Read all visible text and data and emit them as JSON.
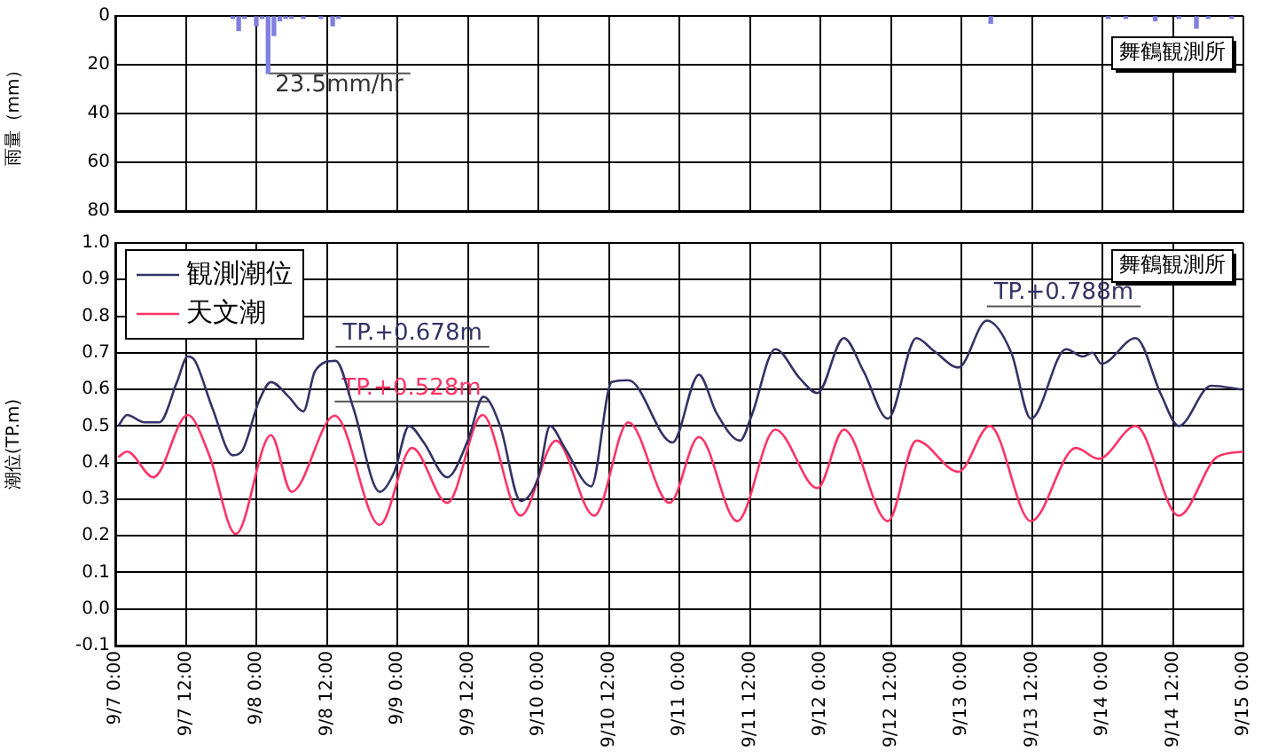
{
  "chart_data": [
    {
      "type": "bar",
      "ylabel": "雨量（mm）",
      "x": [
        "--09-07T20:00",
        "--09-07T21:00",
        "--09-07T22:00",
        "--09-08T00:00",
        "--09-08T01:00",
        "--09-08T02:00",
        "--09-08T03:00",
        "--09-08T04:00",
        "--09-08T05:00",
        "--09-08T06:00",
        "--09-08T08:00",
        "--09-08T11:00",
        "--09-08T13:00",
        "--09-08T14:00",
        "--09-13T05:00",
        "--09-14T01:00",
        "--09-14T04:00",
        "--09-14T09:00",
        "--09-14T13:00",
        "--09-14T16:00",
        "--09-14T18:00",
        "--09-14T22:00"
      ],
      "values": [
        1,
        6,
        1,
        4,
        1,
        23.5,
        8,
        2,
        1,
        1,
        1,
        1,
        4,
        1,
        3,
        1,
        1,
        2,
        1,
        5,
        1,
        1
      ],
      "color": "#7f7fe0",
      "xlim": [
        "--09-07T00:00",
        "--09-15T00:00"
      ],
      "xticks": [
        {
          "value": "--09-07T00:00",
          "label": null
        },
        {
          "value": "--09-07T12:00",
          "label": null
        },
        {
          "value": "--09-08T00:00",
          "label": null
        },
        {
          "value": "--09-08T12:00",
          "label": null
        },
        {
          "value": "--09-09T00:00",
          "label": null
        },
        {
          "value": "--09-09T12:00",
          "label": null
        },
        {
          "value": "--09-10T00:00",
          "label": null
        },
        {
          "value": "--09-10T12:00",
          "label": null
        },
        {
          "value": "--09-11T00:00",
          "label": null
        },
        {
          "value": "--09-11T12:00",
          "label": null
        },
        {
          "value": "--09-12T00:00",
          "label": null
        },
        {
          "value": "--09-12T12:00",
          "label": null
        },
        {
          "value": "--09-13T00:00",
          "label": null
        },
        {
          "value": "--09-13T12:00",
          "label": null
        },
        {
          "value": "--09-14T00:00",
          "label": null
        },
        {
          "value": "--09-14T12:00",
          "label": null
        },
        {
          "value": "--09-15T00:00",
          "label": null
        }
      ],
      "ylim": [
        80,
        0
      ],
      "yticks": [
        0,
        20,
        40,
        60,
        80
      ],
      "tick_labels": "y",
      "grid": true,
      "annotations": [
        {
          "text": "23.5mm/hr",
          "x": "--09-08T02:00",
          "y": 23.5
        },
        "舞鶴観測所"
      ]
    },
    {
      "type": "line",
      "ylabel": "潮位(TP.m)",
      "legend": "top left",
      "grid": true,
      "marker": "none",
      "line_style": "solid",
      "xlim": [
        "--09-07T00:00",
        "--09-15T00:00"
      ],
      "xticks": [
        {
          "value": "--09-07T00:00",
          "label": "9/7 0:00"
        },
        {
          "value": "--09-07T12:00",
          "label": "9/7 12:00"
        },
        {
          "value": "--09-08T00:00",
          "label": "9/8 0:00"
        },
        {
          "value": "--09-08T12:00",
          "label": "9/8 12:00"
        },
        {
          "value": "--09-09T00:00",
          "label": "9/9 0:00"
        },
        {
          "value": "--09-09T12:00",
          "label": "9/9 12:00"
        },
        {
          "value": "--09-10T00:00",
          "label": "9/10 0:00"
        },
        {
          "value": "--09-10T12:00",
          "label": "9/10 12:00"
        },
        {
          "value": "--09-11T00:00",
          "label": "9/11 0:00"
        },
        {
          "value": "--09-11T12:00",
          "label": "9/11 12:00"
        },
        {
          "value": "--09-12T00:00",
          "label": "9/12 0:00"
        },
        {
          "value": "--09-12T12:00",
          "label": "9/12 12:00"
        },
        {
          "value": "--09-13T00:00",
          "label": "9/13 0:00"
        },
        {
          "value": "--09-13T12:00",
          "label": "9/13 12:00"
        },
        {
          "value": "--09-14T00:00",
          "label": "9/14 0:00"
        },
        {
          "value": "--09-14T12:00",
          "label": "9/14 12:00"
        },
        {
          "value": "--09-15T00:00",
          "label": "9/15 0:00"
        }
      ],
      "ylim": [
        -0.1,
        1.0
      ],
      "yticks": [
        -0.1,
        {
          "value": 0,
          "label": "0.0"
        },
        0.1,
        0.2,
        0.3,
        0.4,
        0.5,
        0.6,
        0.7,
        0.8,
        0.9,
        {
          "value": 1,
          "label": "1.0"
        }
      ],
      "series": [
        {
          "name": "観測潮位",
          "color": "#333366",
          "x": [
            "--09-07T00:30",
            "--09-07T02:00",
            "--09-07T05:00",
            "--09-07T07:30",
            "--09-07T10:30",
            "--09-07T12:20",
            "--09-07T13:30",
            "--09-07T16:30",
            "--09-07T20:00",
            "--09-07T21:30",
            "--09-08T00:30",
            "--09-08T02:30",
            "--09-08T05:30",
            "--09-08T08:00",
            "--09-08T10:00",
            "--09-08T13:30",
            "--09-08T16:30",
            "--09-08T21:00",
            "--09-08T23:30",
            "--09-09T02:00",
            "--09-09T04:30",
            "--09-09T08:30",
            "--09-09T12:00",
            "--09-09T14:40",
            "--09-09T17:30",
            "--09-09T21:00",
            "--09-10T00:00",
            "--09-10T02:00",
            "--09-10T04:30",
            "--09-10T09:00",
            "--09-10T12:30",
            "--09-10T15:20",
            "--09-10T22:50",
            "--09-11T03:20",
            "--09-11T06:20",
            "--09-11T10:20",
            "--09-11T12:20",
            "--09-11T16:20",
            "--09-11T20:30",
            "--09-11T23:30",
            "--09-12T04:00",
            "--09-12T07:20",
            "--09-12T11:30",
            "--09-12T16:20",
            "--09-12T19:20",
            "--09-12T23:30",
            "--09-13T04:20",
            "--09-13T08:30",
            "--09-13T11:50",
            "--09-13T17:50",
            "--09-13T20:40",
            "--09-13T22:20",
            "--09-13T23:50",
            "--09-14T05:40",
            "--09-14T10:00",
            "--09-14T13:00",
            "--09-14T18:30",
            "--09-14T23:40"
          ],
          "values": [
            0.5,
            0.53,
            0.51,
            0.51,
            0.62,
            0.69,
            0.68,
            0.55,
            0.42,
            0.43,
            0.57,
            0.62,
            0.58,
            0.54,
            0.65,
            0.678,
            0.55,
            0.32,
            0.375,
            0.5,
            0.455,
            0.36,
            0.46,
            0.58,
            0.5,
            0.295,
            0.36,
            0.5,
            0.44,
            0.335,
            0.62,
            0.625,
            0.455,
            0.64,
            0.535,
            0.46,
            0.53,
            0.71,
            0.63,
            0.59,
            0.74,
            0.65,
            0.52,
            0.74,
            0.705,
            0.66,
            0.788,
            0.7,
            0.52,
            0.71,
            0.69,
            0.7,
            0.67,
            0.74,
            0.585,
            0.5,
            0.61,
            0.6
          ]
        },
        {
          "name": "天文潮",
          "color": "#ff3366",
          "x": [
            "--09-07T00:30",
            "--09-07T02:00",
            "--09-07T06:30",
            "--09-07T12:20",
            "--09-07T16:00",
            "--09-07T20:30",
            "--09-08T02:30",
            "--09-08T06:00",
            "--09-08T13:20",
            "--09-08T21:00",
            "--09-09T02:30",
            "--09-09T08:30",
            "--09-09T14:30",
            "--09-09T21:00",
            "--09-10T03:00",
            "--09-10T09:30",
            "--09-10T15:20",
            "--09-10T22:20",
            "--09-11T03:20",
            "--09-11T09:50",
            "--09-11T16:20",
            "--09-11T23:30",
            "--09-12T04:00",
            "--09-12T11:30",
            "--09-12T16:20",
            "--09-12T23:30",
            "--09-13T04:50",
            "--09-13T11:50",
            "--09-13T19:30",
            "--09-13T23:20",
            "--09-14T05:40",
            "--09-14T13:00",
            "--09-14T19:30",
            "--09-15T00:00"
          ],
          "values": [
            0.415,
            0.43,
            0.36,
            0.53,
            0.42,
            0.205,
            0.475,
            0.32,
            0.528,
            0.23,
            0.44,
            0.29,
            0.53,
            0.255,
            0.46,
            0.255,
            0.51,
            0.29,
            0.47,
            0.24,
            0.49,
            0.33,
            0.49,
            0.24,
            0.46,
            0.375,
            0.5,
            0.24,
            0.44,
            0.41,
            0.5,
            0.255,
            0.415,
            0.43
          ]
        }
      ],
      "annotations": [
        {
          "text": "TP.+0.678m",
          "x": "--09-08T13:30",
          "y": 0.678
        },
        {
          "text": "TP.+0.528m",
          "x": "--09-08T13:20",
          "y": 0.528
        },
        {
          "text": "TP.+0.788m",
          "x": "--09-13T04:20",
          "y": 0.788
        },
        "舞鶴観測所"
      ]
    }
  ]
}
